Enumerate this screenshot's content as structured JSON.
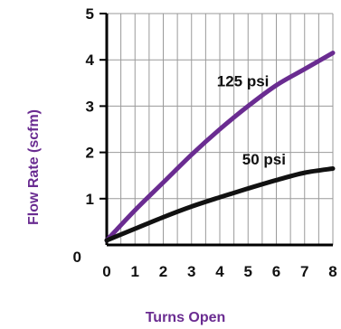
{
  "chart_data": {
    "type": "line",
    "title": "",
    "xlabel": "Turns Open",
    "ylabel": "Flow Rate (scfm)",
    "xlim": [
      0,
      8
    ],
    "ylim": [
      0,
      5
    ],
    "x_ticks": [
      0,
      1,
      2,
      3,
      4,
      5,
      6,
      7,
      8
    ],
    "y_ticks": [
      0,
      1,
      2,
      3,
      4,
      5
    ],
    "grid": true,
    "series": [
      {
        "name": "125 psi",
        "color": "#6a2c91",
        "x": [
          0,
          1,
          2,
          3,
          4,
          5,
          6,
          7,
          8
        ],
        "y": [
          0.1,
          0.75,
          1.35,
          1.95,
          2.5,
          3.0,
          3.45,
          3.8,
          4.15
        ]
      },
      {
        "name": "50 psi",
        "color": "#111111",
        "x": [
          0,
          1,
          2,
          3,
          4,
          5,
          6,
          7,
          8
        ],
        "y": [
          0.1,
          0.35,
          0.6,
          0.83,
          1.03,
          1.22,
          1.4,
          1.56,
          1.65
        ]
      }
    ]
  }
}
